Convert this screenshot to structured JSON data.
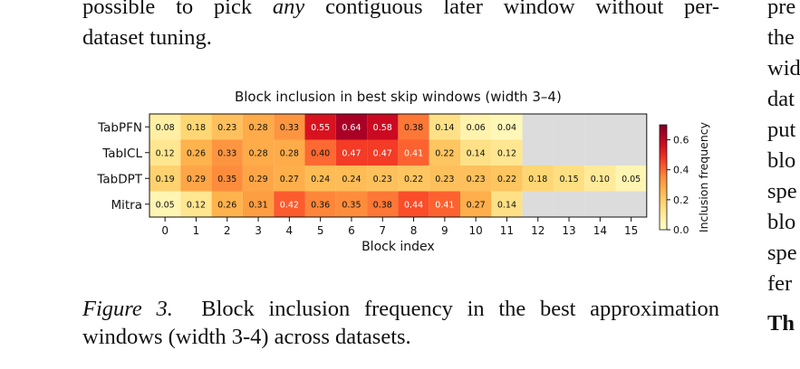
{
  "intro": {
    "line1_before": "possible to pick ",
    "line1_emph": "any",
    "line1_after": " contiguous later window without per-",
    "line2": "dataset tuning."
  },
  "right_column": {
    "lines": [
      "pre",
      "the",
      "wid",
      "dat",
      "put",
      "blo",
      "spe",
      "blo",
      "spe",
      "fer"
    ],
    "heading": "Th"
  },
  "figure": {
    "caption_label": "Figure 3.",
    "caption_line1": "Block inclusion frequency in the best approximation",
    "caption_line2": "windows (width 3-4) across datasets."
  },
  "chart_data": {
    "type": "heatmap",
    "title": "Block inclusion in best skip windows (width 3–4)",
    "xlabel": "Block index",
    "colorbar_label": "Inclusion frequency",
    "colormap": "YlOrRd",
    "vmin": 0.0,
    "vmax": 0.7,
    "missing_color": "#dcdcdc",
    "colorbar_ticks": [
      "0.0",
      "0.2",
      "0.4",
      "0.6"
    ],
    "colorbar_tick_values": [
      0.0,
      0.2,
      0.4,
      0.6
    ],
    "x_categories": [
      "0",
      "1",
      "2",
      "3",
      "4",
      "5",
      "6",
      "7",
      "8",
      "9",
      "10",
      "11",
      "12",
      "13",
      "14",
      "15"
    ],
    "rows": [
      {
        "name": "TabPFN",
        "values": [
          0.08,
          0.18,
          0.23,
          0.28,
          0.33,
          0.55,
          0.64,
          0.58,
          0.38,
          0.14,
          0.06,
          0.04,
          null,
          null,
          null,
          null
        ]
      },
      {
        "name": "TabICL",
        "values": [
          0.12,
          0.26,
          0.33,
          0.28,
          0.28,
          0.4,
          0.47,
          0.47,
          0.41,
          0.22,
          0.14,
          0.12,
          null,
          null,
          null,
          null
        ]
      },
      {
        "name": "TabDPT",
        "values": [
          0.19,
          0.29,
          0.35,
          0.29,
          0.27,
          0.24,
          0.24,
          0.23,
          0.22,
          0.23,
          0.23,
          0.22,
          0.18,
          0.15,
          0.1,
          0.05
        ]
      },
      {
        "name": "Mitra",
        "values": [
          0.05,
          0.12,
          0.26,
          0.31,
          0.42,
          0.36,
          0.35,
          0.38,
          0.44,
          0.41,
          0.27,
          0.14,
          null,
          null,
          null,
          null
        ]
      }
    ]
  }
}
